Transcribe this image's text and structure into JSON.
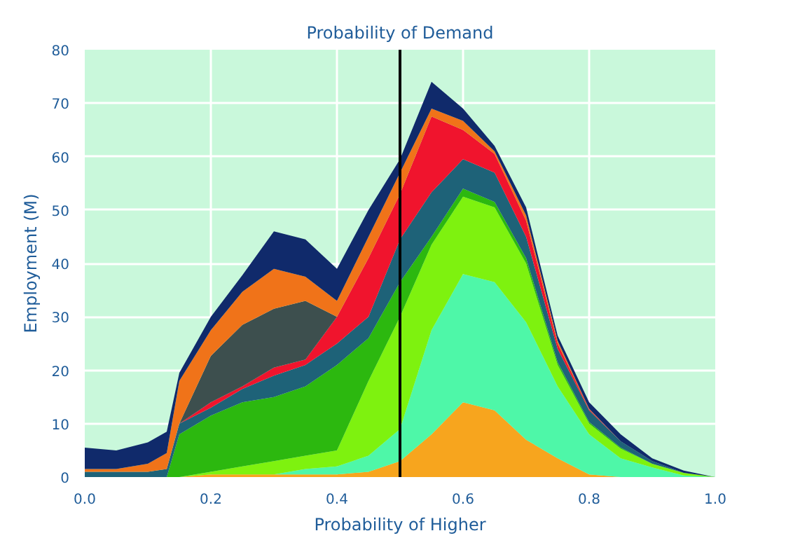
{
  "chart_data": {
    "type": "area",
    "stacked": true,
    "title": "Probability of Demand",
    "xlabel": "Probability of Higher",
    "ylabel": "Employment (M)",
    "x": [
      0,
      0.05,
      0.1,
      0.13,
      0.15,
      0.2,
      0.25,
      0.3,
      0.35,
      0.4,
      0.45,
      0.5,
      0.55,
      0.6,
      0.65,
      0.7,
      0.75,
      0.8,
      0.85,
      0.9,
      0.95,
      1.0
    ],
    "series": [
      {
        "color": "#f7a51e",
        "values": [
          0,
          0,
          0,
          0,
          0,
          0.5,
          0.5,
          0.5,
          0.5,
          0.5,
          1,
          3,
          8,
          14,
          12.5,
          7,
          3.5,
          0.5,
          0,
          0,
          0,
          0
        ]
      },
      {
        "color": "#4ef7a8",
        "values": [
          0,
          0,
          0,
          0,
          0,
          0,
          0,
          0,
          1,
          1.5,
          3,
          6,
          19.5,
          24,
          24,
          22,
          13.5,
          7.5,
          3.5,
          1.8,
          0.3,
          0
        ]
      },
      {
        "color": "#7ef20f",
        "values": [
          0,
          0,
          0,
          0,
          0,
          0.5,
          1.5,
          2.5,
          2.5,
          3,
          14,
          21,
          16,
          14.5,
          14,
          11,
          4,
          2,
          1.8,
          0.7,
          0.5,
          0
        ]
      },
      {
        "color": "#2cb80f",
        "values": [
          0,
          0,
          0,
          0,
          8,
          10.5,
          12,
          12,
          13,
          16,
          8,
          6.5,
          1.5,
          1.5,
          1,
          1,
          0.5,
          0.3,
          0.2,
          0,
          0,
          0
        ]
      },
      {
        "color": "#1e6278",
        "values": [
          1,
          1,
          1,
          1.5,
          2,
          1.5,
          2.5,
          4,
          4,
          4,
          4,
          8,
          8.3,
          5.5,
          5.5,
          4,
          2.5,
          2.2,
          1.2,
          0.5,
          0,
          0
        ]
      },
      {
        "color": "#f0142d",
        "values": [
          0,
          0,
          0,
          0,
          0,
          1,
          0.5,
          1.5,
          1,
          5,
          11,
          8.5,
          14.2,
          5.5,
          3.5,
          3,
          1,
          0.2,
          0,
          0,
          0,
          0
        ]
      },
      {
        "color": "#3d4f4e",
        "values": [
          null,
          null,
          null,
          null,
          0,
          8.7,
          11.5,
          11,
          11,
          0,
          null,
          null,
          null,
          null,
          null,
          null,
          null,
          null,
          null,
          null,
          null,
          null
        ]
      },
      {
        "color": "#f07319",
        "values": [
          0.5,
          0.5,
          1.5,
          3,
          8,
          4.8,
          6.2,
          7.5,
          4.5,
          3,
          4,
          4,
          1.5,
          1.7,
          0.5,
          1,
          0.5,
          0.1,
          0,
          0,
          0,
          0
        ]
      },
      {
        "color": "#102a6b",
        "values": [
          4,
          3.5,
          4,
          4,
          1.5,
          2.5,
          3.1,
          7,
          7,
          6,
          5,
          2.5,
          5,
          2.3,
          1,
          1.5,
          1,
          1.2,
          1.3,
          0.5,
          0.4,
          0
        ]
      }
    ],
    "xlim": [
      0,
      1
    ],
    "ylim": [
      0,
      80
    ],
    "xticks": [
      {
        "value": 0,
        "label": "0.0"
      },
      {
        "value": 0.2,
        "label": "0.2"
      },
      {
        "value": 0.4,
        "label": "0.4"
      },
      {
        "value": 0.6,
        "label": "0.6"
      },
      {
        "value": 0.8,
        "label": "0.8"
      },
      {
        "value": 1,
        "label": "1.0"
      }
    ],
    "yticks": [
      0,
      10,
      20,
      30,
      40,
      50,
      60,
      70,
      80
    ],
    "grid": true,
    "ref_lines": [
      {
        "axis": "x",
        "value": 0.5,
        "color": "#000000"
      }
    ]
  }
}
